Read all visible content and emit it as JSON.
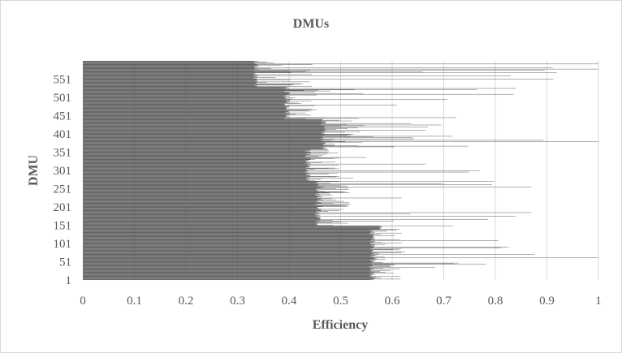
{
  "chart_data": {
    "type": "bar",
    "orientation": "horizontal",
    "title": "DMUs",
    "xlabel": "Efficiency",
    "ylabel": "DMU",
    "xlim": [
      0,
      1
    ],
    "xticks": [
      "0",
      "0.1",
      "0.2",
      "0.3",
      "0.4",
      "0.5",
      "0.6",
      "0.7",
      "0.8",
      "0.9",
      "1"
    ],
    "yticks": [
      "1",
      "51",
      "101",
      "151",
      "201",
      "251",
      "301",
      "351",
      "401",
      "451",
      "501",
      "551"
    ],
    "ytick_values": [
      1,
      51,
      101,
      151,
      201,
      251,
      301,
      351,
      401,
      451,
      501,
      551
    ],
    "dmu_count": 600,
    "grid": "vertical",
    "legend": "none",
    "bar_color": "#595959",
    "segments": [
      {
        "from_dmu": 1,
        "to_dmu": 140,
        "floor": 0.555,
        "typical_max": 0.62,
        "spike": 1.0
      },
      {
        "from_dmu": 140,
        "to_dmu": 150,
        "floor": 0.57,
        "typical_max": 0.58,
        "spike": 1.0
      },
      {
        "from_dmu": 150,
        "to_dmu": 270,
        "floor": 0.45,
        "typical_max": 0.52,
        "spike": 0.87
      },
      {
        "from_dmu": 270,
        "to_dmu": 360,
        "floor": 0.43,
        "typical_max": 0.5,
        "spike": 0.8
      },
      {
        "from_dmu": 360,
        "to_dmu": 440,
        "floor": 0.46,
        "typical_max": 0.55,
        "spike": 1.0
      },
      {
        "from_dmu": 440,
        "to_dmu": 530,
        "floor": 0.39,
        "typical_max": 0.47,
        "spike": 0.84
      },
      {
        "from_dmu": 530,
        "to_dmu": 600,
        "floor": 0.33,
        "typical_max": 0.45,
        "spike": 1.0
      }
    ]
  }
}
